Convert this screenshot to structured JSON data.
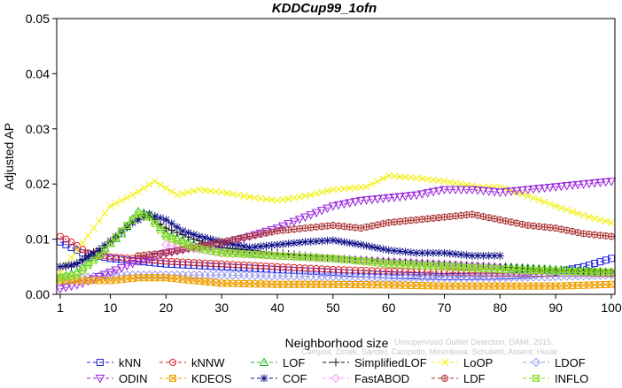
{
  "chart_data": {
    "type": "line",
    "title": "KDDCup99_1ofn",
    "xlabel": "Neighborhood size",
    "ylabel": "Adjusted AP",
    "xlim": [
      1,
      100
    ],
    "ylim": [
      0,
      0.05
    ],
    "x_ticks": [
      1,
      10,
      20,
      30,
      40,
      50,
      60,
      70,
      80,
      90,
      100
    ],
    "y_ticks": [
      0.0,
      0.01,
      0.02,
      0.03,
      0.04,
      0.05
    ],
    "y_tick_labels": [
      "0.00",
      "0.01",
      "0.02",
      "0.03",
      "0.04",
      "0.05"
    ],
    "grid": false,
    "legend_position": "bottom",
    "watermark": "Campos, Zimek, Sander, Campello, Micenkova, Schubert, Assent, Houle: Unsupervised Outlier Detection. DAMI, 2015.",
    "watermark_lines": [
      "Unsupervised Outlier Detection. DAMI, 2015.",
      "Campos, Zimek, Sander, Campello, Micenkova, Schubert, Assent, Houle"
    ],
    "series": [
      {
        "name": "kNN",
        "color": "#2222dd",
        "marker": "square",
        "points": [
          [
            1,
            0.0095
          ],
          [
            5,
            0.0075
          ],
          [
            10,
            0.0065
          ],
          [
            20,
            0.0055
          ],
          [
            30,
            0.005
          ],
          [
            40,
            0.0045
          ],
          [
            50,
            0.004
          ],
          [
            60,
            0.0035
          ],
          [
            70,
            0.0032
          ],
          [
            80,
            0.0033
          ],
          [
            85,
            0.0035
          ],
          [
            90,
            0.004
          ],
          [
            95,
            0.005
          ],
          [
            100,
            0.0065
          ]
        ]
      },
      {
        "name": "kNNW",
        "color": "#dd2222",
        "marker": "circle",
        "points": [
          [
            1,
            0.0105
          ],
          [
            3,
            0.0095
          ],
          [
            6,
            0.0075
          ],
          [
            10,
            0.0068
          ],
          [
            20,
            0.006
          ],
          [
            30,
            0.0055
          ],
          [
            40,
            0.005
          ],
          [
            50,
            0.0045
          ],
          [
            60,
            0.0042
          ],
          [
            70,
            0.004
          ],
          [
            80,
            0.0038
          ],
          [
            90,
            0.0038
          ],
          [
            100,
            0.0038
          ]
        ]
      },
      {
        "name": "LOF",
        "color": "#22bb22",
        "marker": "triangle-up",
        "points": [
          [
            1,
            0.003
          ],
          [
            4,
            0.004
          ],
          [
            8,
            0.0075
          ],
          [
            12,
            0.011
          ],
          [
            15,
            0.015
          ],
          [
            17,
            0.0145
          ],
          [
            20,
            0.011
          ],
          [
            25,
            0.009
          ],
          [
            30,
            0.008
          ],
          [
            40,
            0.007
          ],
          [
            50,
            0.0065
          ],
          [
            60,
            0.006
          ],
          [
            70,
            0.0055
          ],
          [
            80,
            0.005
          ],
          [
            90,
            0.0045
          ],
          [
            100,
            0.004
          ]
        ]
      },
      {
        "name": "SimplifiedLOF",
        "color": "#111111",
        "marker": "plus",
        "points": [
          [
            1,
            0.005
          ],
          [
            3,
            0.005
          ],
          [
            6,
            0.007
          ],
          [
            10,
            0.0095
          ],
          [
            14,
            0.013
          ],
          [
            16,
            0.0145
          ],
          [
            18,
            0.0135
          ],
          [
            20,
            0.012
          ],
          [
            25,
            0.01
          ],
          [
            30,
            0.0085
          ],
          [
            40,
            0.0075
          ],
          [
            50,
            0.0065
          ],
          [
            60,
            0.006
          ],
          [
            70,
            0.0055
          ],
          [
            80,
            0.005
          ],
          [
            90,
            0.0042
          ],
          [
            100,
            0.004
          ]
        ]
      },
      {
        "name": "LoOP",
        "color": "#f0f000",
        "marker": "x",
        "points": [
          [
            1,
            0.004
          ],
          [
            4,
            0.008
          ],
          [
            7,
            0.012
          ],
          [
            10,
            0.016
          ],
          [
            14,
            0.018
          ],
          [
            18,
            0.0205
          ],
          [
            22,
            0.018
          ],
          [
            26,
            0.019
          ],
          [
            30,
            0.0185
          ],
          [
            36,
            0.0175
          ],
          [
            40,
            0.017
          ],
          [
            46,
            0.018
          ],
          [
            50,
            0.019
          ],
          [
            56,
            0.0195
          ],
          [
            60,
            0.0215
          ],
          [
            66,
            0.021
          ],
          [
            70,
            0.0205
          ],
          [
            76,
            0.0195
          ],
          [
            80,
            0.0195
          ],
          [
            86,
            0.0175
          ],
          [
            90,
            0.016
          ],
          [
            96,
            0.014
          ],
          [
            100,
            0.013
          ]
        ]
      },
      {
        "name": "LDOF",
        "color": "#9999ee",
        "marker": "diamond",
        "points": [
          [
            1,
            0.0025
          ],
          [
            5,
            0.003
          ],
          [
            10,
            0.0035
          ],
          [
            20,
            0.0035
          ],
          [
            30,
            0.0035
          ],
          [
            40,
            0.0033
          ],
          [
            50,
            0.0032
          ],
          [
            60,
            0.003
          ],
          [
            70,
            0.003
          ],
          [
            80,
            0.003
          ],
          [
            90,
            0.0032
          ],
          [
            100,
            0.0035
          ]
        ]
      },
      {
        "name": "ODIN",
        "color": "#9922dd",
        "marker": "triangle-down",
        "points": [
          [
            1,
            0.001
          ],
          [
            5,
            0.002
          ],
          [
            10,
            0.004
          ],
          [
            15,
            0.006
          ],
          [
            20,
            0.0075
          ],
          [
            25,
            0.0085
          ],
          [
            30,
            0.009
          ],
          [
            35,
            0.0105
          ],
          [
            40,
            0.012
          ],
          [
            45,
            0.014
          ],
          [
            50,
            0.016
          ],
          [
            55,
            0.017
          ],
          [
            60,
            0.0175
          ],
          [
            65,
            0.018
          ],
          [
            70,
            0.019
          ],
          [
            75,
            0.019
          ],
          [
            80,
            0.0185
          ],
          [
            85,
            0.019
          ],
          [
            90,
            0.0195
          ],
          [
            95,
            0.02
          ],
          [
            100,
            0.0205
          ]
        ]
      },
      {
        "name": "KDEOS",
        "color": "#f0a000",
        "marker": "square-x",
        "points": [
          [
            1,
            0.0025
          ],
          [
            5,
            0.0025
          ],
          [
            10,
            0.0025
          ],
          [
            15,
            0.003
          ],
          [
            20,
            0.003
          ],
          [
            25,
            0.0025
          ],
          [
            30,
            0.002
          ],
          [
            40,
            0.0018
          ],
          [
            50,
            0.0018
          ],
          [
            60,
            0.0017
          ],
          [
            70,
            0.0015
          ],
          [
            80,
            0.0015
          ],
          [
            90,
            0.0015
          ],
          [
            100,
            0.0018
          ]
        ]
      },
      {
        "name": "COF",
        "color": "#111188",
        "marker": "asterisk",
        "points": [
          [
            1,
            0.005
          ],
          [
            4,
            0.0055
          ],
          [
            8,
            0.008
          ],
          [
            11,
            0.0105
          ],
          [
            14,
            0.013
          ],
          [
            17,
            0.0145
          ],
          [
            20,
            0.0135
          ],
          [
            23,
            0.0115
          ],
          [
            26,
            0.0105
          ],
          [
            30,
            0.0095
          ],
          [
            35,
            0.0085
          ],
          [
            40,
            0.009
          ],
          [
            45,
            0.0095
          ],
          [
            50,
            0.0098
          ],
          [
            55,
            0.009
          ],
          [
            60,
            0.008
          ],
          [
            65,
            0.0075
          ],
          [
            70,
            0.0075
          ],
          [
            75,
            0.007
          ],
          [
            80,
            0.007
          ]
        ]
      },
      {
        "name": "FastABOD",
        "color": "#ff99ff",
        "marker": "diamond",
        "points": [
          [
            20,
            0.009
          ],
          [
            30,
            0.0075
          ],
          [
            40,
            0.007
          ],
          [
            50,
            0.0065
          ],
          [
            60,
            0.006
          ],
          [
            70,
            0.0055
          ],
          [
            80,
            0.005
          ]
        ]
      },
      {
        "name": "LDF",
        "color": "#aa3333",
        "marker": "circle-plus",
        "points": [
          [
            15,
            0.007
          ],
          [
            20,
            0.0075
          ],
          [
            25,
            0.0085
          ],
          [
            30,
            0.0095
          ],
          [
            35,
            0.0105
          ],
          [
            40,
            0.0115
          ],
          [
            45,
            0.012
          ],
          [
            50,
            0.0125
          ],
          [
            55,
            0.012
          ],
          [
            60,
            0.013
          ],
          [
            65,
            0.0135
          ],
          [
            70,
            0.014
          ],
          [
            75,
            0.0145
          ],
          [
            80,
            0.0135
          ],
          [
            85,
            0.0125
          ],
          [
            90,
            0.012
          ],
          [
            95,
            0.011
          ],
          [
            100,
            0.0105
          ]
        ]
      },
      {
        "name": "INFLO",
        "color": "#88dd22",
        "marker": "square-x",
        "points": [
          [
            1,
            0.003
          ],
          [
            4,
            0.0035
          ],
          [
            8,
            0.007
          ],
          [
            12,
            0.0115
          ],
          [
            15,
            0.0145
          ],
          [
            17,
            0.014
          ],
          [
            20,
            0.0105
          ],
          [
            25,
            0.0085
          ],
          [
            30,
            0.0075
          ],
          [
            40,
            0.007
          ],
          [
            50,
            0.0065
          ],
          [
            60,
            0.0055
          ],
          [
            70,
            0.005
          ],
          [
            80,
            0.0045
          ],
          [
            90,
            0.0042
          ],
          [
            100,
            0.004
          ]
        ]
      }
    ]
  }
}
